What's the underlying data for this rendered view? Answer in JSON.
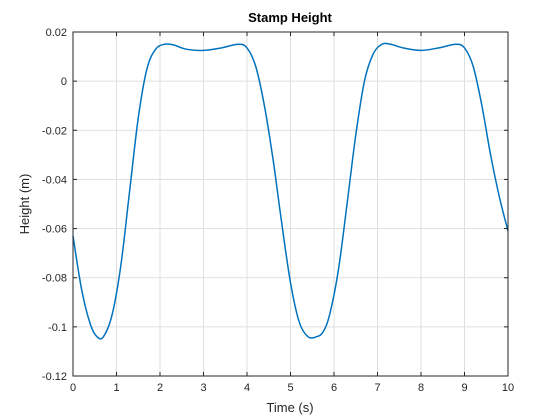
{
  "chart_data": {
    "type": "line",
    "title": "Stamp Height",
    "xlabel": "Time (s)",
    "ylabel": "Height (m)",
    "xlim": [
      0,
      10
    ],
    "ylim": [
      -0.12,
      0.02
    ],
    "grid": true,
    "legend": "none",
    "xticks": [
      0,
      1,
      2,
      3,
      4,
      5,
      6,
      7,
      8,
      9,
      10
    ],
    "yticks": [
      -0.12,
      -0.1,
      -0.08,
      -0.06,
      -0.04,
      -0.02,
      0,
      0.02
    ],
    "xtick_labels": [
      "0",
      "1",
      "2",
      "3",
      "4",
      "5",
      "6",
      "7",
      "8",
      "9",
      "10"
    ],
    "ytick_labels": [
      "-0.12",
      "-0.1",
      "-0.08",
      "-0.06",
      "-0.04",
      "-0.02",
      "0",
      "0.02"
    ],
    "series": [
      {
        "color": "#0072bd",
        "x": [
          0,
          0.2,
          0.4,
          0.55,
          0.7,
          0.9,
          1.1,
          1.3,
          1.5,
          1.7,
          1.9,
          2.1,
          2.3,
          2.6,
          3.0,
          3.4,
          3.8,
          4.0,
          4.2,
          4.4,
          4.6,
          4.8,
          5.0,
          5.2,
          5.4,
          5.6,
          5.75,
          5.9,
          6.1,
          6.3,
          6.5,
          6.7,
          6.9,
          7.1,
          7.3,
          7.6,
          8.0,
          8.4,
          8.8,
          9.0,
          9.2,
          9.4,
          9.6,
          9.8,
          10.0
        ],
        "y": [
          -0.063,
          -0.085,
          -0.099,
          -0.104,
          -0.104,
          -0.095,
          -0.075,
          -0.045,
          -0.015,
          0.005,
          0.013,
          0.015,
          0.0148,
          0.013,
          0.0125,
          0.0135,
          0.015,
          0.0135,
          0.006,
          -0.01,
          -0.032,
          -0.058,
          -0.082,
          -0.098,
          -0.104,
          -0.104,
          -0.102,
          -0.095,
          -0.077,
          -0.05,
          -0.022,
          0.0,
          0.011,
          0.015,
          0.015,
          0.0135,
          0.0125,
          0.0135,
          0.015,
          0.0135,
          0.006,
          -0.01,
          -0.03,
          -0.047,
          -0.061
        ]
      }
    ]
  }
}
